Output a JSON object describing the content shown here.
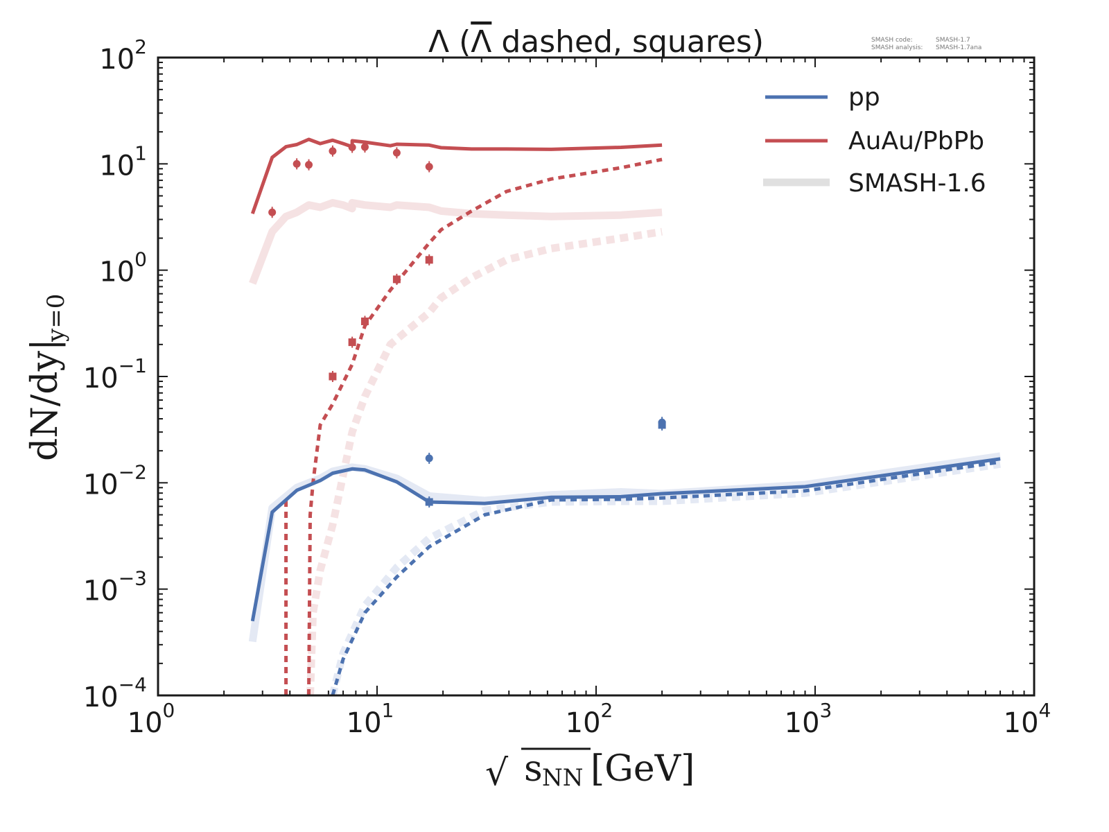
{
  "chart_data": {
    "type": "line",
    "title": "Λ (Λ̄ dashed, squares)",
    "title_parts": {
      "lambda": "Λ",
      "rest": " (",
      "antilambda": "Λ",
      "tail": " dashed, squares)"
    },
    "version_info": {
      "code_label": "SMASH code:",
      "code_value": "SMASH-1.7",
      "analysis_label": "SMASH analysis:",
      "analysis_value": "SMASH-1.7ana"
    },
    "xlabel": {
      "sqrt": "√",
      "s": "s",
      "sub": "NN",
      "unit": "[GeV]"
    },
    "ylabel": {
      "main": "dN/dy|",
      "sub": "y=0"
    },
    "xscale": "log",
    "yscale": "log",
    "xlim": [
      1,
      10000
    ],
    "ylim": [
      0.0001,
      100
    ],
    "x_ticks": [
      {
        "base": "10",
        "exp": "0",
        "value": 1
      },
      {
        "base": "10",
        "exp": "1",
        "value": 10
      },
      {
        "base": "10",
        "exp": "2",
        "value": 100
      },
      {
        "base": "10",
        "exp": "3",
        "value": 1000
      },
      {
        "base": "10",
        "exp": "4",
        "value": 10000
      }
    ],
    "y_ticks": [
      {
        "base": "10",
        "exp": "2",
        "value": 100
      },
      {
        "base": "10",
        "exp": "1",
        "value": 10
      },
      {
        "base": "10",
        "exp": "0",
        "value": 1
      },
      {
        "base": "10",
        "exp": "−1",
        "value": 0.1
      },
      {
        "base": "10",
        "exp": "−2",
        "value": 0.01
      },
      {
        "base": "10",
        "exp": "−3",
        "value": 0.001
      },
      {
        "base": "10",
        "exp": "−4",
        "value": 0.0001
      }
    ],
    "legend": {
      "position": "upper-right",
      "entries": [
        {
          "label": "pp",
          "color": "#4C72B0",
          "style": "solid"
        },
        {
          "label": "AuAu/PbPb",
          "color": "#C44E52",
          "style": "solid"
        },
        {
          "label": "SMASH-1.6",
          "color": "#E0E0E0",
          "style": "thick"
        }
      ]
    },
    "colors": {
      "pp": "#4C72B0",
      "aa": "#C44E52",
      "pp_old": "#E4E9F4",
      "aa_old": "#F5E2E3",
      "axis": "#1a1a1a"
    },
    "series": [
      {
        "name": "AuAu/PbPb Λ (SMASH-1.7)",
        "group": "aa",
        "style": "solid",
        "x": [
          2.7,
          3.32,
          3.84,
          4.3,
          4.88,
          5.5,
          6.27,
          7.0,
          7.7,
          7.7,
          8.8,
          11.5,
          12.3,
          17.3,
          19.6,
          27,
          39,
          62.4,
          130,
          200
        ],
        "y": [
          3.4,
          11.5,
          14.5,
          15.2,
          17,
          15.5,
          16.7,
          15.5,
          14.5,
          16.5,
          16.0,
          14.8,
          15.3,
          15.0,
          14.2,
          13.8,
          13.8,
          13.7,
          14.3,
          15.0
        ]
      },
      {
        "name": "AuAu/PbPb Λ̄ (SMASH-1.7)",
        "group": "aa",
        "style": "dashed",
        "x": [
          4.88,
          4.95,
          5.1,
          5.5,
          6.27,
          7.7,
          8.8,
          11.5,
          17.3,
          19.6,
          27,
          39,
          62.4,
          130,
          200
        ],
        "y": [
          0.0001,
          0.005,
          0.01,
          0.035,
          0.055,
          0.13,
          0.3,
          0.65,
          1.8,
          2.4,
          3.6,
          5.5,
          7.2,
          9.2,
          11.0
        ]
      },
      {
        "name": "AuAu/PbPb Λ (SMASH-1.6)",
        "group": "aa_old",
        "style": "solid",
        "x": [
          2.7,
          3.32,
          3.84,
          4.3,
          4.88,
          5.5,
          6.27,
          7.0,
          7.7,
          7.7,
          8.8,
          11.5,
          12.3,
          17.3,
          19.6,
          27,
          39,
          62.4,
          130,
          200
        ],
        "y": [
          0.75,
          2.3,
          3.2,
          3.5,
          4.1,
          3.9,
          4.3,
          4.1,
          3.8,
          4.3,
          4.1,
          3.9,
          4.1,
          3.9,
          3.6,
          3.4,
          3.3,
          3.2,
          3.3,
          3.5
        ]
      },
      {
        "name": "AuAu/PbPb Λ̄ (SMASH-1.6)",
        "group": "aa_old",
        "style": "dashed",
        "x": [
          4.95,
          5.1,
          5.5,
          6.27,
          7.7,
          8.8,
          11.5,
          17.3,
          19.6,
          27,
          39,
          62.4,
          130,
          200
        ],
        "y": [
          0.0001,
          0.0006,
          0.0015,
          0.004,
          0.03,
          0.065,
          0.2,
          0.4,
          0.55,
          0.85,
          1.25,
          1.6,
          2.0,
          2.3
        ]
      },
      {
        "name": "AuAu/PbPb Λ̄ low-energy edge",
        "group": "aa",
        "style": "dashed",
        "x": [
          3.84,
          3.84
        ],
        "y": [
          0.0001,
          0.0068
        ]
      },
      {
        "name": "pp Λ (SMASH-1.7)",
        "group": "pp",
        "style": "solid",
        "x": [
          2.7,
          3.32,
          4.3,
          5.5,
          6.27,
          7.7,
          8.8,
          12.3,
          17.3,
          31,
          62.4,
          130,
          200,
          900,
          7000
        ],
        "y": [
          0.0005,
          0.0053,
          0.0085,
          0.0105,
          0.0123,
          0.0135,
          0.0132,
          0.0102,
          0.0066,
          0.0064,
          0.0073,
          0.0074,
          0.0079,
          0.0092,
          0.0168
        ]
      },
      {
        "name": "pp Λ̄ (SMASH-1.7)",
        "group": "pp",
        "style": "dashed",
        "x": [
          6.27,
          7.0,
          8.8,
          12.3,
          17.3,
          31,
          62.4,
          130,
          200,
          900,
          7000
        ],
        "y": [
          0.0001,
          0.00022,
          0.0006,
          0.0013,
          0.0025,
          0.005,
          0.0069,
          0.007,
          0.0072,
          0.0084,
          0.0157
        ]
      },
      {
        "name": "pp Λ (SMASH-1.6)",
        "group": "pp_old",
        "style": "solid",
        "x": [
          2.7,
          3.32,
          4.3,
          5.5,
          6.27,
          7.7,
          8.8,
          12.3,
          17.3,
          31,
          62.4,
          130,
          200,
          900,
          7000
        ],
        "y": [
          0.00032,
          0.0058,
          0.009,
          0.011,
          0.0128,
          0.014,
          0.0135,
          0.011,
          0.0075,
          0.0068,
          0.0077,
          0.0082,
          0.0079,
          0.0096,
          0.0178
        ]
      },
      {
        "name": "pp Λ̄ (SMASH-1.6)",
        "group": "pp_old",
        "style": "dashed",
        "x": [
          6.27,
          7.0,
          8.8,
          12.3,
          17.3,
          31,
          62.4,
          130,
          200,
          900,
          7000
        ],
        "y": [
          0.0001,
          0.00025,
          0.0007,
          0.0016,
          0.003,
          0.0055,
          0.0066,
          0.0067,
          0.0067,
          0.008,
          0.015
        ]
      }
    ],
    "data_points": [
      {
        "name": "AuAu Λ data",
        "group": "aa",
        "marker": "circle",
        "x": [
          3.32,
          4.3,
          4.88,
          6.27,
          7.7,
          8.8,
          12.3,
          17.3
        ],
        "y": [
          3.5,
          10.0,
          9.8,
          13.2,
          14.3,
          14.4,
          12.7,
          9.4
        ]
      },
      {
        "name": "AuAu Λ̄ data",
        "group": "aa",
        "marker": "square",
        "x": [
          6.27,
          7.7,
          8.8,
          12.3,
          17.3
        ],
        "y": [
          0.1,
          0.21,
          0.33,
          0.82,
          1.25
        ]
      },
      {
        "name": "pp Λ data",
        "group": "pp",
        "marker": "circle",
        "x": [
          17.3,
          200
        ],
        "y": [
          0.017,
          0.037
        ]
      },
      {
        "name": "pp Λ̄ data",
        "group": "pp",
        "marker": "square",
        "x": [
          17.3,
          200
        ],
        "y": [
          0.0066,
          0.035
        ]
      }
    ]
  }
}
